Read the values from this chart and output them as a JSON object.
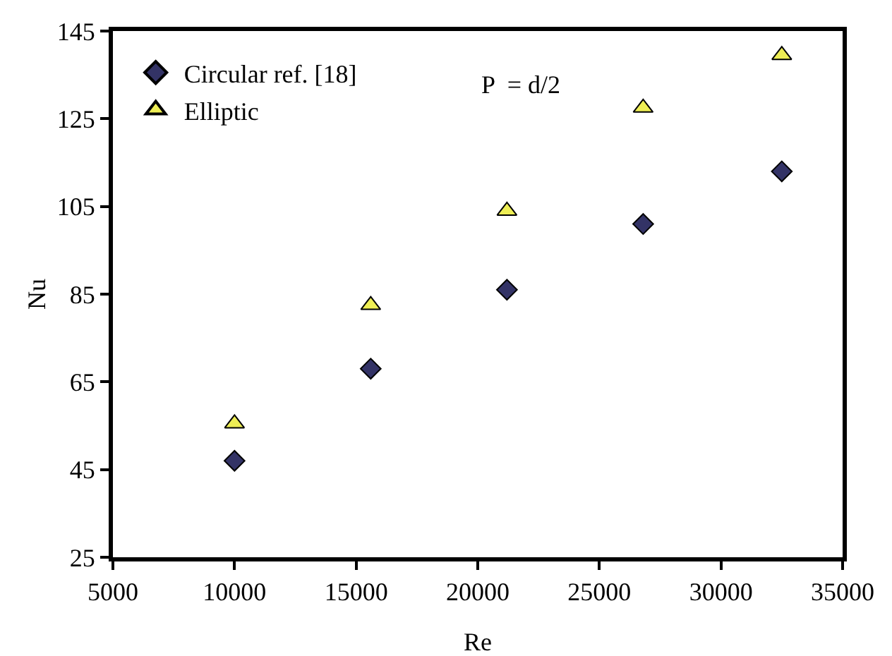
{
  "chart_data": {
    "type": "scatter",
    "xlabel": "Re",
    "ylabel": "Nu",
    "xlim": [
      5000,
      35000
    ],
    "xticks": [
      5000,
      10000,
      15000,
      20000,
      25000,
      30000,
      35000
    ],
    "ylim": [
      25,
      145
    ],
    "yticks": [
      25,
      45,
      65,
      85,
      105,
      125,
      145
    ],
    "grid": false,
    "legend": "top left",
    "annotations": [
      "P  = d/2"
    ],
    "series": [
      {
        "name": "Circular ref. [18]",
        "color": "#333366",
        "marker": "diamond",
        "x": [
          10000,
          15600,
          21200,
          26800,
          32500
        ],
        "values": [
          47,
          68,
          86,
          101,
          113
        ]
      },
      {
        "name": "Elliptic",
        "color": "#eeee55",
        "marker": "triangle",
        "x": [
          10000,
          15600,
          21200,
          26800,
          32500
        ],
        "values": [
          55.5,
          82.5,
          104,
          127.5,
          139.5
        ]
      }
    ]
  }
}
